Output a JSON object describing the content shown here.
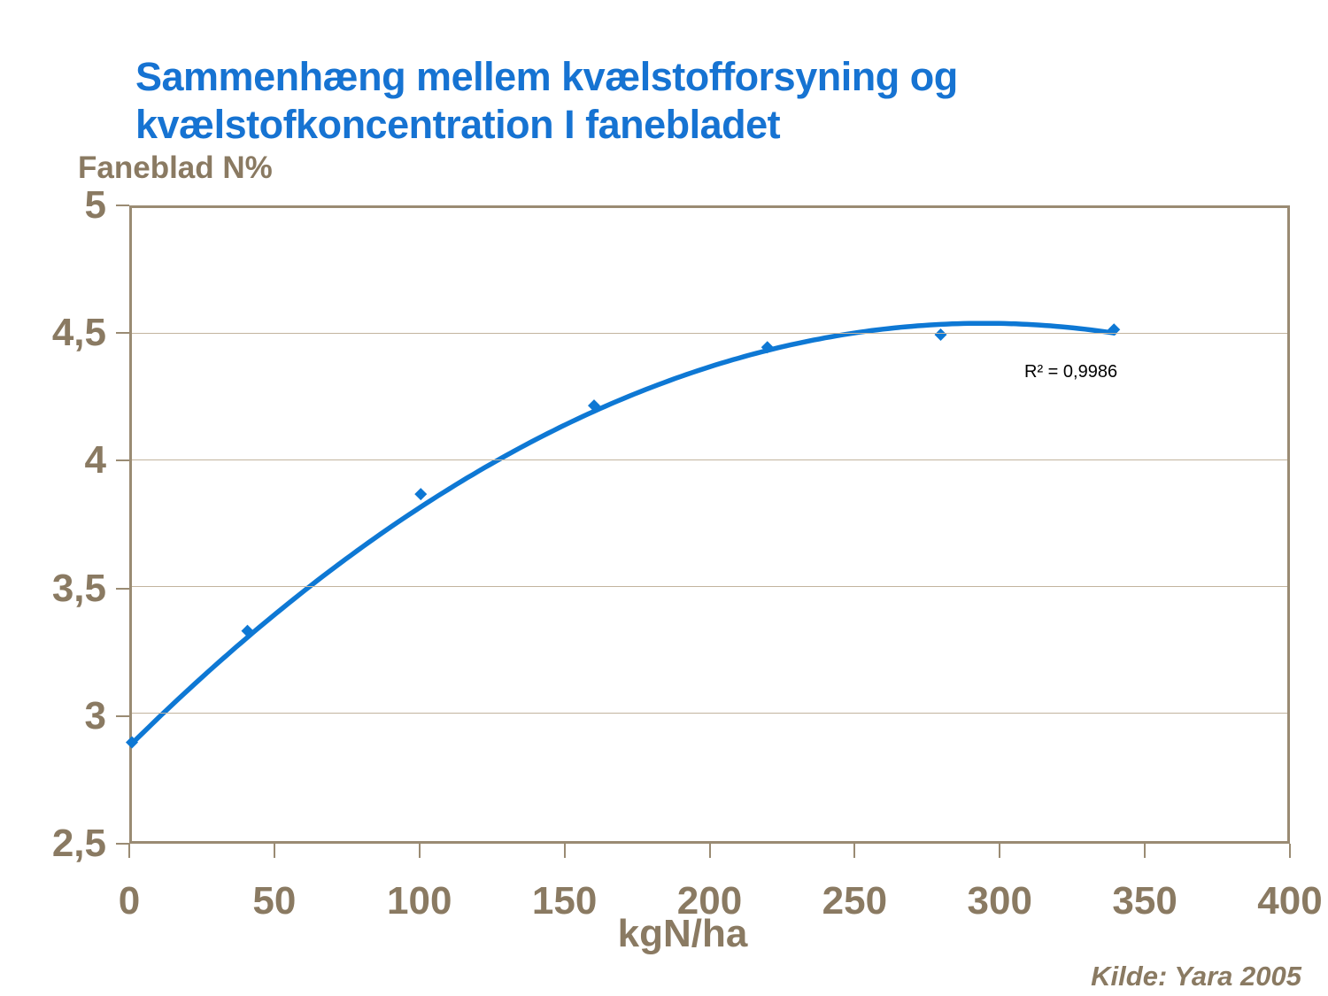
{
  "title": {
    "line1": "Sammenhæng mellem kvælstofforsyning og",
    "line2": "kvælstofkoncentration I fanebladet"
  },
  "y_axis_title": "Faneblad N%",
  "x_axis_title": "kgN/ha",
  "annotation_r2": "R² = 0,9986",
  "source": "Kilde: Yara 2005",
  "colors": {
    "title_blue": "#1673D2",
    "series_blue": "#0E78D4",
    "axis_text_brown": "#8A7A62",
    "plot_border": "#9A8B73",
    "gridline": "#C2B49E",
    "annotation_black": "#000000"
  },
  "chart_data": {
    "type": "scatter",
    "title": "Sammenhæng mellem kvælstofforsyning og kvælstofkoncentration I fanebladet",
    "xlabel": "kgN/ha",
    "ylabel": "Faneblad N%",
    "xlim": [
      0,
      400
    ],
    "ylim": [
      2.5,
      5
    ],
    "grid": "horizontal",
    "legend": "none",
    "x": [
      0,
      40,
      100,
      160,
      220,
      280,
      340
    ],
    "y": [
      2.89,
      3.33,
      3.87,
      4.22,
      4.45,
      4.5,
      4.52
    ],
    "marker": "diamond",
    "trendline": {
      "type": "polynomial-2",
      "a": 2.885,
      "b": 0.011254,
      "c": -1.9075e-05,
      "x_min": 0,
      "x_max": 340,
      "r2": "0,9986"
    },
    "x_tick_values": [
      0,
      50,
      100,
      150,
      200,
      250,
      300,
      350,
      400
    ],
    "x_tick_labels": [
      "0",
      "50",
      "100",
      "150",
      "200",
      "250",
      "300",
      "350",
      "400"
    ],
    "y_tick_values": [
      5,
      4.5,
      4,
      3.5,
      3,
      2.5
    ],
    "y_tick_labels": [
      "5",
      "4,5",
      "4",
      "3,5",
      "3",
      "2,5"
    ]
  }
}
